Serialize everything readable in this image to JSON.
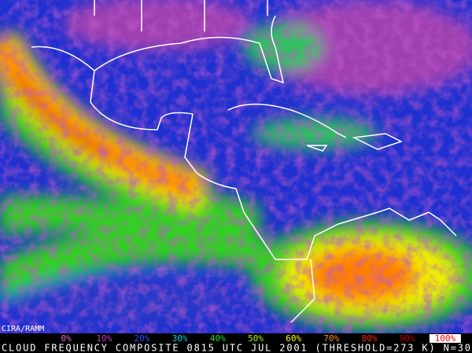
{
  "credit": "CIRA/RAMM",
  "caption": "CLOUD FREQUENCY COMPOSITE 0815 UTC JUL 2001 (THRESHOLD=273 K) N=30",
  "legend": [
    {
      "label": "0%",
      "color": "#e070c0"
    },
    {
      "label": "10%",
      "color": "#c040c0"
    },
    {
      "label": "20%",
      "color": "#3050ff"
    },
    {
      "label": "30%",
      "color": "#00d0e0"
    },
    {
      "label": "40%",
      "color": "#20e020"
    },
    {
      "label": "50%",
      "color": "#b0f000"
    },
    {
      "label": "60%",
      "color": "#ffff00"
    },
    {
      "label": "70%",
      "color": "#ff9000"
    },
    {
      "label": "80%",
      "color": "#ff2000"
    },
    {
      "label": "90%",
      "color": "#c00000"
    },
    {
      "label": "100%",
      "color": "#ff0000"
    }
  ]
}
